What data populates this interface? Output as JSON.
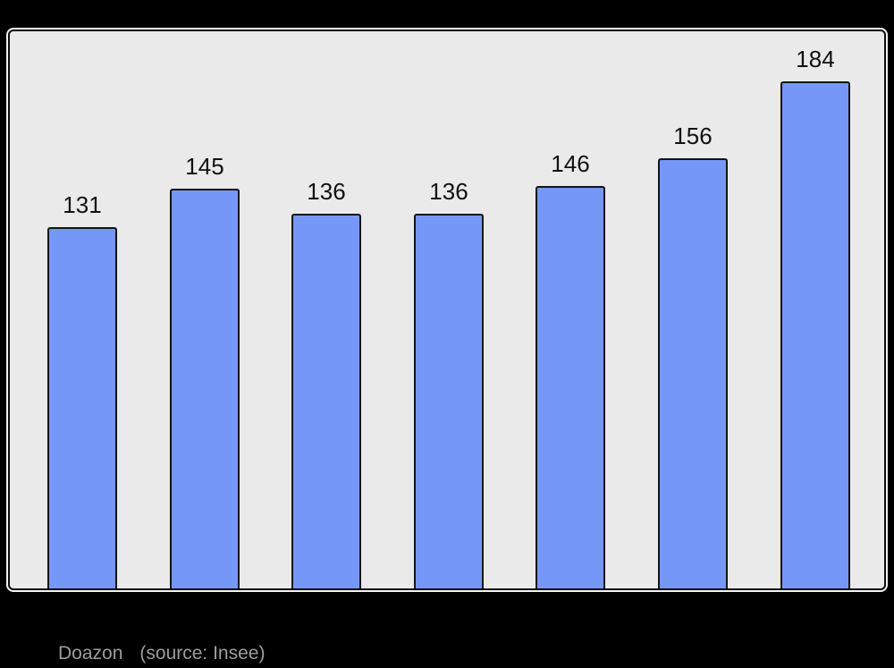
{
  "window": {
    "background": "#000000"
  },
  "chart_data": {
    "type": "bar",
    "title": "",
    "values": [
      131,
      145,
      136,
      136,
      146,
      156,
      184
    ],
    "value_labels_shown": true,
    "x_axis_labels_visible": false,
    "y_axis_visible": false,
    "grid": false,
    "legend": false,
    "ylim": [
      0,
      202
    ],
    "colors": {
      "bar_fill": "#7598f8",
      "bar_border": "#141414",
      "panel_background": "#eaeaea",
      "panel_border": "#0d0d0d",
      "panel_rim": "#f2f2f2",
      "value_label": "#111111",
      "caption": "#9c9c9c",
      "page_background": "#000000"
    }
  },
  "caption": {
    "place": "Doazon",
    "source": "(source: Insee)"
  }
}
